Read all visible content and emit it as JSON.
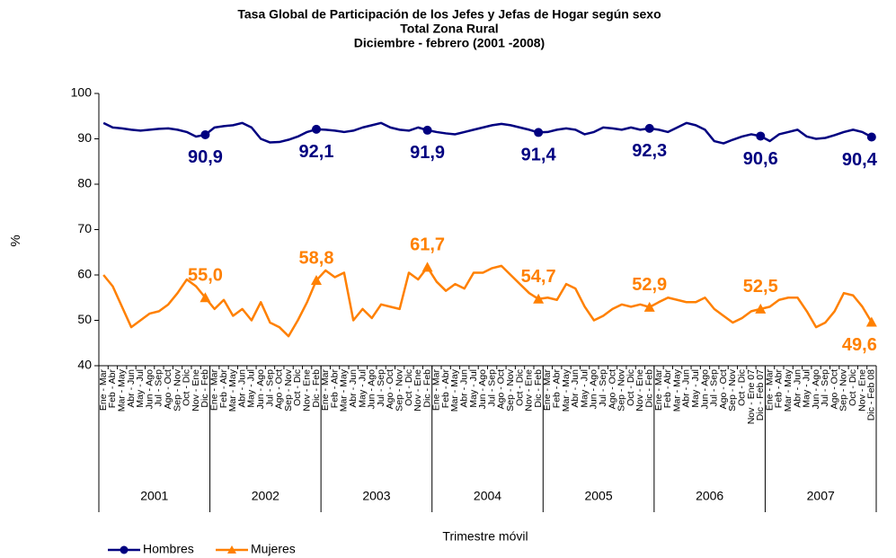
{
  "chart_data": {
    "type": "line",
    "title": "Tasa Global de Participación de los Jefes y Jefas de Hogar según sexo",
    "subtitle": [
      "Total Zona Rural",
      "Diciembre  - febrero (2001 -2008)"
    ],
    "y_label": "%",
    "x_label": "Trimestre móvil",
    "categories": [
      "Ene - Mar",
      "Feb - Abr",
      "Mar - May",
      "Abr - Jun",
      "May - Jul",
      "Jun - Ago",
      "Jul - Sep",
      "Ago - Oct",
      "Sep - Nov",
      "Oct - Dic",
      "Nov - Ene",
      "Dic - Feb",
      "Ene - Mar",
      "Feb - Abr",
      "Mar - May",
      "Abr - Jun",
      "May - Jul",
      "Jun - Ago",
      "Jul - Sep",
      "Ago - Oct",
      "Sep - Nov",
      "Oct - Dic",
      "Nov - Ene",
      "Dic - Feb",
      "Ene - Mar",
      "Feb - Abr",
      "Mar - May",
      "Abr - Jun",
      "May - Jul",
      "Jun - Ago",
      "Jul - Sep",
      "Ago - Oct",
      "Sep - Nov",
      "Oct - Dic",
      "Nov - Ene",
      "Dic - Feb",
      "Ene - Mar",
      "Feb - Abr",
      "Mar - May",
      "Abr - Jun",
      "May - Jul",
      "Jun - Ago",
      "Jul - Sep",
      "Ago - Oct",
      "Sep - Nov",
      "Oct - Dic",
      "Nov - Ene",
      "Dic - Feb",
      "Ene - Mar",
      "Feb - Abr",
      "Mar - May",
      "Abr - Jun",
      "May - Jul",
      "Jun - Ago",
      "Jul - Sep",
      "Ago - Oct",
      "Sep - Nov",
      "Oct - Dic",
      "Nov - Ene",
      "Dic - Feb",
      "Ene - Mar",
      "Feb - Abr",
      "Mar - May",
      "Abr - Jun",
      "May - Jul",
      "Jun - Ago",
      "Jul - Sep",
      "Ago - Oct",
      "Sep - Nov",
      "Oct - Dic",
      "Nov - Ene 07",
      "Dic - Feb 07",
      "Ene - Mar",
      "Feb - Abr",
      "Mar - May",
      "Abr - Jun",
      "May - Jul",
      "Jun - Ago",
      "Jul - Sep",
      "Ago - Oct",
      "Sep - Nov",
      "Oct - Dic",
      "Nov - Ene",
      "Dic - Feb 08"
    ],
    "years": [
      "2001",
      "2002",
      "2003",
      "2004",
      "2005",
      "2006",
      "2007"
    ],
    "series": [
      {
        "name": "Hombres",
        "color": "#000080",
        "marker": "circle",
        "values": [
          93.5,
          92.5,
          92.3,
          92.0,
          91.8,
          92.0,
          92.2,
          92.3,
          92.0,
          91.5,
          90.5,
          90.9,
          92.5,
          92.8,
          93.0,
          93.5,
          92.5,
          90.0,
          89.2,
          89.3,
          89.8,
          90.5,
          91.5,
          92.1,
          92.0,
          91.8,
          91.5,
          91.8,
          92.5,
          93.0,
          93.5,
          92.5,
          92.0,
          91.8,
          92.5,
          91.9,
          91.5,
          91.2,
          91.0,
          91.5,
          92.0,
          92.5,
          93.0,
          93.3,
          93.0,
          92.5,
          92.0,
          91.4,
          91.5,
          92.0,
          92.3,
          92.0,
          91.0,
          91.5,
          92.5,
          92.3,
          92.0,
          92.5,
          92.0,
          92.3,
          92.0,
          91.5,
          92.5,
          93.5,
          93.0,
          92.0,
          89.5,
          89.0,
          89.8,
          90.5,
          91.0,
          90.6,
          89.5,
          91.0,
          91.5,
          92.0,
          90.5,
          90.0,
          90.2,
          90.8,
          91.5,
          92.0,
          91.5,
          90.4
        ],
        "value_labels": [
          null,
          null,
          null,
          null,
          null,
          null,
          null,
          null,
          null,
          null,
          null,
          "90,9",
          null,
          null,
          null,
          null,
          null,
          null,
          null,
          null,
          null,
          null,
          null,
          "92,1",
          null,
          null,
          null,
          null,
          null,
          null,
          null,
          null,
          null,
          null,
          null,
          "91,9",
          null,
          null,
          null,
          null,
          null,
          null,
          null,
          null,
          null,
          null,
          null,
          "91,4",
          null,
          null,
          null,
          null,
          null,
          null,
          null,
          null,
          null,
          null,
          null,
          "92,3",
          null,
          null,
          null,
          null,
          null,
          null,
          null,
          null,
          null,
          null,
          null,
          "90,6",
          null,
          null,
          null,
          null,
          null,
          null,
          null,
          null,
          null,
          null,
          null,
          "90,4"
        ]
      },
      {
        "name": "Mujeres",
        "color": "#ff8000",
        "marker": "triangle",
        "values": [
          60.0,
          57.5,
          53.0,
          48.5,
          50.0,
          51.5,
          52.0,
          53.5,
          56.0,
          59.0,
          57.5,
          55.0,
          52.5,
          54.5,
          51.0,
          52.5,
          50.0,
          54.0,
          49.5,
          48.5,
          46.5,
          50.0,
          54.0,
          58.8,
          61.0,
          59.5,
          60.5,
          50.0,
          52.5,
          50.5,
          53.5,
          53.0,
          52.5,
          60.5,
          59.0,
          61.7,
          58.5,
          56.5,
          58.0,
          57.0,
          60.5,
          60.5,
          61.5,
          62.0,
          60.0,
          58.0,
          56.0,
          54.7,
          55.0,
          54.5,
          58.0,
          57.0,
          53.0,
          50.0,
          51.0,
          52.5,
          53.5,
          53.0,
          53.5,
          52.9,
          54.0,
          55.0,
          54.5,
          54.0,
          54.0,
          55.0,
          52.5,
          51.0,
          49.5,
          50.5,
          52.0,
          52.5,
          53.0,
          54.5,
          55.0,
          55.0,
          52.0,
          48.5,
          49.5,
          52.0,
          56.0,
          55.5,
          53.0,
          49.6
        ],
        "value_labels": [
          null,
          null,
          null,
          null,
          null,
          null,
          null,
          null,
          null,
          null,
          null,
          "55,0",
          null,
          null,
          null,
          null,
          null,
          null,
          null,
          null,
          null,
          null,
          null,
          "58,8",
          null,
          null,
          null,
          null,
          null,
          null,
          null,
          null,
          null,
          null,
          null,
          "61,7",
          null,
          null,
          null,
          null,
          null,
          null,
          null,
          null,
          null,
          null,
          null,
          "54,7",
          null,
          null,
          null,
          null,
          null,
          null,
          null,
          null,
          null,
          null,
          null,
          "52,9",
          null,
          null,
          null,
          null,
          null,
          null,
          null,
          null,
          null,
          null,
          null,
          "52,5",
          null,
          null,
          null,
          null,
          null,
          null,
          null,
          null,
          null,
          null,
          null,
          "49,6"
        ]
      }
    ],
    "ylim": [
      40,
      100
    ],
    "yticks": [
      40,
      50,
      60,
      70,
      80,
      90,
      100
    ],
    "grid": false,
    "legend": "bottom-left"
  }
}
